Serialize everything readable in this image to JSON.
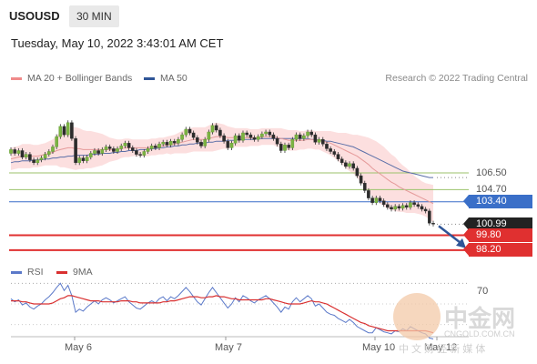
{
  "header": {
    "symbol": "USOUSD",
    "timeframe": "30 MIN",
    "timestamp": "Tuesday, May 10, 2022 3:43:01 AM CET"
  },
  "legend": {
    "ma20_label": "MA 20 + Bollinger Bands",
    "ma50_label": "MA 50",
    "ma20_color": "#f08a8a",
    "ma50_color": "#2f5597",
    "credit": "Research © 2022 Trading Central"
  },
  "rsi_legend": {
    "rsi_label": "RSI",
    "ma9_label": "9MA",
    "rsi_color": "#5b79c9",
    "ma9_color": "#d93030"
  },
  "watermark": {
    "main": "中金网",
    "domain": "CNGOLD.COM.CN",
    "sub": "中 文 财 经 新 媒 体"
  },
  "chart_data": {
    "type": "candlestick",
    "title": "USOUSD",
    "x_ticks": [
      "May 6",
      "May 7",
      "May 10",
      "May 12"
    ],
    "price_ylim": [
      97.5,
      115.5
    ],
    "levels": [
      {
        "label": "106.50",
        "value": 106.5,
        "kind": "resistance",
        "color": "#9bc26b"
      },
      {
        "label": "104.70",
        "value": 104.7,
        "kind": "resistance",
        "color": "#9bc26b"
      },
      {
        "label": "103.40",
        "value": 103.4,
        "kind": "pivot",
        "color": "#3a6fc8"
      },
      {
        "label": "100.99",
        "value": 100.99,
        "kind": "last",
        "color": "#222222"
      },
      {
        "label": "99.80",
        "value": 99.8,
        "kind": "support",
        "color": "#e03030"
      },
      {
        "label": "98.20",
        "value": 98.2,
        "kind": "support",
        "color": "#e03030"
      }
    ],
    "close": [
      109.0,
      108.6,
      108.9,
      108.2,
      108.5,
      107.9,
      107.6,
      107.9,
      108.1,
      108.5,
      108.8,
      109.3,
      110.4,
      111.5,
      110.6,
      111.9,
      110.2,
      107.6,
      108.1,
      107.8,
      108.2,
      108.6,
      108.9,
      108.6,
      109.0,
      109.3,
      109.1,
      108.8,
      109.1,
      109.4,
      109.7,
      109.2,
      108.9,
      108.5,
      108.4,
      108.8,
      109.1,
      109.4,
      109.2,
      109.6,
      109.8,
      109.5,
      109.9,
      109.7,
      110.1,
      110.6,
      111.2,
      110.8,
      110.3,
      109.8,
      109.4,
      110.1,
      110.9,
      111.6,
      111.1,
      110.5,
      109.9,
      109.2,
      109.7,
      110.5,
      110.0,
      110.8,
      110.6,
      110.3,
      110.1,
      110.4,
      110.7,
      110.9,
      110.6,
      110.2,
      109.6,
      108.9,
      109.5,
      109.2,
      110.1,
      110.6,
      110.2,
      110.5,
      110.9,
      110.6,
      109.8,
      110.1,
      109.6,
      109.1,
      108.8,
      108.5,
      108.0,
      107.6,
      107.2,
      107.5,
      107.0,
      106.2,
      105.4,
      104.6,
      103.8,
      103.3,
      103.8,
      103.5,
      103.1,
      102.8,
      102.6,
      102.9,
      102.7,
      103.0,
      102.8,
      103.3,
      103.1,
      102.9,
      102.6,
      102.4,
      101.1,
      100.99
    ],
    "open": [
      108.6,
      109.0,
      108.6,
      108.9,
      108.2,
      108.5,
      107.9,
      107.6,
      107.9,
      108.1,
      108.5,
      108.8,
      109.3,
      110.4,
      111.5,
      110.6,
      111.9,
      110.2,
      107.6,
      108.1,
      107.8,
      108.2,
      108.6,
      108.9,
      108.6,
      109.0,
      109.3,
      109.1,
      108.8,
      109.1,
      109.4,
      109.7,
      109.2,
      108.9,
      108.5,
      108.4,
      108.8,
      109.1,
      109.4,
      109.2,
      109.6,
      109.8,
      109.5,
      109.9,
      109.7,
      110.1,
      110.6,
      111.2,
      110.8,
      110.3,
      109.8,
      109.4,
      110.1,
      110.9,
      111.6,
      111.1,
      110.5,
      109.9,
      109.2,
      109.7,
      110.5,
      110.0,
      110.8,
      110.6,
      110.3,
      110.1,
      110.4,
      110.7,
      110.9,
      110.6,
      110.2,
      109.6,
      108.9,
      109.5,
      109.2,
      110.1,
      110.6,
      110.2,
      110.5,
      110.9,
      110.6,
      109.8,
      110.1,
      109.6,
      109.1,
      108.8,
      108.5,
      108.0,
      107.6,
      107.2,
      107.5,
      107.0,
      106.2,
      105.4,
      104.6,
      103.8,
      103.3,
      103.8,
      103.5,
      103.1,
      102.8,
      102.6,
      102.9,
      102.7,
      103.0,
      102.8,
      103.3,
      103.1,
      102.9,
      102.6,
      102.4,
      101.1
    ],
    "ma20": [
      108.0,
      108.1,
      108.2,
      108.3,
      108.3,
      108.3,
      108.3,
      108.3,
      108.4,
      108.5,
      108.6,
      108.7,
      108.9,
      109.0,
      109.1,
      109.2,
      109.2,
      109.1,
      109.1,
      109.0,
      109.0,
      109.0,
      109.0,
      109.0,
      109.0,
      109.0,
      109.0,
      109.0,
      109.0,
      109.1,
      109.2,
      109.2,
      109.2,
      109.2,
      109.2,
      109.2,
      109.2,
      109.3,
      109.3,
      109.4,
      109.4,
      109.5,
      109.5,
      109.6,
      109.7,
      109.8,
      109.9,
      110.0,
      110.1,
      110.1,
      110.1,
      110.1,
      110.2,
      110.3,
      110.4,
      110.4,
      110.4,
      110.3,
      110.3,
      110.3,
      110.3,
      110.3,
      110.3,
      110.3,
      110.3,
      110.3,
      110.4,
      110.4,
      110.4,
      110.4,
      110.3,
      110.2,
      110.1,
      110.0,
      110.0,
      110.0,
      110.0,
      110.0,
      110.1,
      110.1,
      110.0,
      110.0,
      109.9,
      109.8,
      109.7,
      109.5,
      109.3,
      109.1,
      108.9,
      108.7,
      108.5,
      108.3,
      108.0,
      107.7,
      107.4,
      107.0,
      106.7,
      106.4,
      106.1,
      105.8,
      105.5,
      105.3,
      105.0,
      104.8,
      104.6,
      104.4,
      104.2,
      104.0,
      103.8,
      103.6,
      103.4,
      103.2
    ],
    "ma50": [
      107.6,
      107.7,
      107.7,
      107.8,
      107.8,
      107.8,
      107.9,
      107.9,
      107.9,
      108.0,
      108.0,
      108.1,
      108.1,
      108.2,
      108.2,
      108.3,
      108.3,
      108.4,
      108.4,
      108.4,
      108.4,
      108.5,
      108.5,
      108.5,
      108.6,
      108.6,
      108.6,
      108.7,
      108.7,
      108.8,
      108.8,
      108.9,
      108.9,
      108.9,
      109.0,
      109.0,
      109.0,
      109.1,
      109.1,
      109.2,
      109.2,
      109.3,
      109.3,
      109.4,
      109.4,
      109.5,
      109.5,
      109.6,
      109.6,
      109.7,
      109.7,
      109.7,
      109.8,
      109.8,
      109.9,
      109.9,
      109.9,
      110.0,
      110.0,
      110.0,
      110.1,
      110.1,
      110.1,
      110.1,
      110.1,
      110.2,
      110.2,
      110.2,
      110.2,
      110.2,
      110.2,
      110.2,
      110.2,
      110.2,
      110.2,
      110.2,
      110.2,
      110.2,
      110.2,
      110.1,
      110.1,
      110.0,
      110.0,
      109.9,
      109.9,
      109.8,
      109.7,
      109.6,
      109.5,
      109.4,
      109.3,
      109.1,
      108.9,
      108.7,
      108.5,
      108.3,
      108.1,
      107.9,
      107.7,
      107.5,
      107.3,
      107.1,
      106.9,
      106.7,
      106.6,
      106.5,
      106.4,
      106.3,
      106.2,
      106.1,
      106.0,
      106.0
    ],
    "bb_width": [
      1.2,
      1.2,
      1.2,
      1.3,
      1.3,
      1.3,
      1.2,
      1.2,
      1.2,
      1.2,
      1.3,
      1.4,
      1.6,
      1.9,
      2.0,
      2.2,
      2.3,
      2.3,
      2.2,
      2.1,
      2.0,
      2.0,
      1.9,
      1.8,
      1.7,
      1.5,
      1.3,
      1.2,
      1.1,
      1.0,
      1.0,
      1.0,
      0.9,
      0.9,
      0.9,
      0.9,
      0.9,
      0.9,
      0.9,
      0.9,
      0.9,
      0.9,
      1.0,
      1.0,
      1.1,
      1.2,
      1.3,
      1.3,
      1.3,
      1.3,
      1.3,
      1.3,
      1.4,
      1.5,
      1.5,
      1.4,
      1.3,
      1.2,
      1.1,
      1.0,
      1.0,
      1.0,
      1.0,
      0.9,
      0.9,
      0.9,
      0.9,
      0.9,
      0.9,
      0.9,
      1.0,
      1.1,
      1.1,
      1.1,
      1.1,
      1.1,
      1.0,
      1.0,
      1.0,
      1.0,
      1.0,
      1.0,
      1.1,
      1.2,
      1.3,
      1.4,
      1.5,
      1.7,
      1.9,
      2.0,
      2.1,
      2.3,
      2.5,
      2.7,
      2.9,
      3.1,
      3.2,
      3.2,
      3.2,
      3.1,
      3.0,
      2.9,
      2.7,
      2.5,
      2.4,
      2.2,
      2.0,
      1.9,
      1.8,
      1.8,
      1.9,
      2.0
    ],
    "forecast": {
      "from": 100.99,
      "to": 98.2
    },
    "rsi": {
      "ylim": [
        20,
        80
      ],
      "tick_label": "70",
      "tick_value": 70,
      "rsi": [
        55,
        52,
        54,
        49,
        51,
        47,
        45,
        48,
        50,
        54,
        57,
        61,
        66,
        70,
        63,
        68,
        58,
        42,
        45,
        43,
        47,
        50,
        53,
        50,
        54,
        56,
        54,
        51,
        53,
        55,
        57,
        52,
        49,
        46,
        45,
        48,
        51,
        53,
        51,
        55,
        57,
        53,
        57,
        55,
        58,
        62,
        66,
        62,
        57,
        52,
        49,
        55,
        61,
        66,
        61,
        56,
        51,
        46,
        50,
        56,
        52,
        58,
        56,
        53,
        51,
        54,
        56,
        58,
        55,
        51,
        47,
        42,
        47,
        45,
        52,
        56,
        52,
        55,
        58,
        55,
        48,
        50,
        46,
        42,
        40,
        39,
        36,
        34,
        32,
        35,
        32,
        28,
        26,
        24,
        22,
        22,
        27,
        25,
        23,
        22,
        21,
        24,
        23,
        26,
        24,
        28,
        26,
        24,
        22,
        21,
        17,
        16
      ],
      "ma9": [
        53,
        53,
        53,
        52,
        52,
        51,
        50,
        50,
        50,
        50,
        50,
        51,
        53,
        55,
        56,
        58,
        58,
        57,
        56,
        55,
        54,
        53,
        53,
        53,
        52,
        52,
        52,
        52,
        52,
        53,
        53,
        53,
        52,
        52,
        51,
        51,
        51,
        51,
        51,
        51,
        52,
        52,
        53,
        53,
        54,
        55,
        56,
        57,
        57,
        57,
        56,
        56,
        57,
        57,
        58,
        57,
        57,
        56,
        55,
        55,
        54,
        54,
        54,
        54,
        54,
        54,
        54,
        55,
        55,
        54,
        53,
        52,
        51,
        50,
        50,
        50,
        50,
        51,
        52,
        53,
        52,
        52,
        51,
        50,
        48,
        46,
        44,
        42,
        40,
        38,
        36,
        34,
        32,
        31,
        29,
        28,
        27,
        26,
        25,
        24,
        24,
        24,
        24,
        24,
        24,
        24,
        24,
        24,
        24,
        24,
        23,
        22
      ]
    }
  }
}
